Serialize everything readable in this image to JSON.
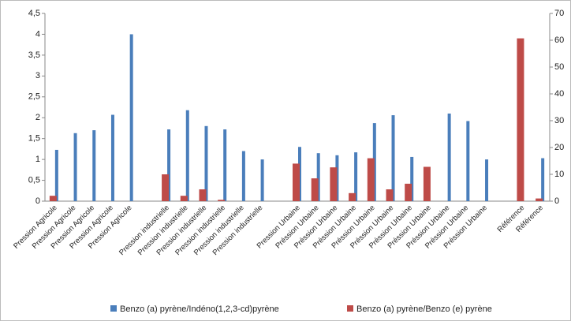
{
  "chart_data": {
    "type": "bar",
    "categories": [
      "Pression Agricole",
      "Pression Agricole",
      "Pression Agricole",
      "Pression Agricole",
      "Pression Agricole",
      null,
      "Pression industrielle",
      "Pression industrielle",
      "Pression industrielle",
      "Pression industrielle",
      "Pression industrielle",
      "Pression industrielle",
      null,
      "Pression Urbaine",
      "Préssion Urbaine",
      "Préssion Urbaine",
      "Préssion Urbaine",
      "Préssion Urbaine",
      "Préssion Urbaine",
      "Préssion Urbaine",
      "Préssion Urbaine",
      "Préssion Urbaine",
      "Préssion Urbaine",
      "Préssion Urbaine",
      null,
      "Référence",
      "Référence"
    ],
    "series": [
      {
        "name": "Benzo (a) pyrène/Indéno(1,2,3-cd)pyrène",
        "color": "#4a7ebb",
        "values": [
          1.23,
          1.63,
          1.7,
          2.07,
          4.0,
          null,
          1.72,
          2.18,
          1.8,
          1.72,
          1.2,
          1.0,
          null,
          1.3,
          1.15,
          1.1,
          1.17,
          1.87,
          2.06,
          1.06,
          null,
          2.1,
          1.92,
          1.0,
          null,
          null,
          1.03
        ]
      },
      {
        "name": "Benzo (a) pyrène/Benzo (e) pyrène",
        "color": "#be4b48",
        "axis": "y2",
        "values": [
          2,
          null,
          null,
          null,
          null,
          null,
          10,
          2,
          4.4,
          0.5,
          null,
          null,
          null,
          14,
          8.5,
          12.6,
          3,
          16,
          4.4,
          6.5,
          12.8,
          null,
          null,
          null,
          null,
          60.7,
          1
        ]
      }
    ],
    "ylim": [
      0,
      4.5
    ],
    "yticks": [
      0,
      {
        "value": 0.5,
        "label": "0,5"
      },
      1,
      {
        "value": 1.5,
        "label": "1,5"
      },
      2,
      {
        "value": 2.5,
        "label": "2,5"
      },
      3,
      {
        "value": 3.5,
        "label": "3,5"
      },
      4,
      {
        "value": 4.5,
        "label": "4,5"
      }
    ],
    "y2lim": [
      0,
      70
    ],
    "y2ticks": [
      0,
      10,
      20,
      30,
      40,
      50,
      60,
      70
    ],
    "legend": "bottom"
  }
}
